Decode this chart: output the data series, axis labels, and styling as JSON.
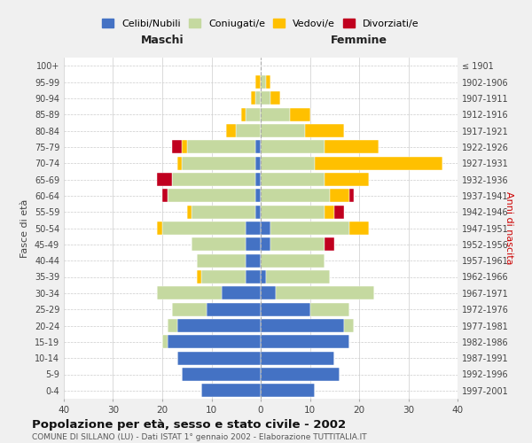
{
  "age_groups": [
    "0-4",
    "5-9",
    "10-14",
    "15-19",
    "20-24",
    "25-29",
    "30-34",
    "35-39",
    "40-44",
    "45-49",
    "50-54",
    "55-59",
    "60-64",
    "65-69",
    "70-74",
    "75-79",
    "80-84",
    "85-89",
    "90-94",
    "95-99",
    "100+"
  ],
  "birth_years": [
    "1997-2001",
    "1992-1996",
    "1987-1991",
    "1982-1986",
    "1977-1981",
    "1972-1976",
    "1967-1971",
    "1962-1966",
    "1957-1961",
    "1952-1956",
    "1947-1951",
    "1942-1946",
    "1937-1941",
    "1932-1936",
    "1927-1931",
    "1922-1926",
    "1917-1921",
    "1912-1916",
    "1907-1911",
    "1902-1906",
    "≤ 1901"
  ],
  "maschi": {
    "celibi": [
      12,
      16,
      17,
      19,
      17,
      11,
      8,
      3,
      3,
      3,
      3,
      1,
      1,
      1,
      1,
      1,
      0,
      0,
      0,
      0,
      0
    ],
    "coniugati": [
      0,
      0,
      0,
      1,
      2,
      7,
      13,
      9,
      10,
      11,
      17,
      13,
      18,
      17,
      15,
      14,
      5,
      3,
      1,
      0,
      0
    ],
    "vedovi": [
      0,
      0,
      0,
      0,
      0,
      0,
      0,
      1,
      0,
      0,
      1,
      1,
      0,
      0,
      1,
      1,
      2,
      1,
      1,
      1,
      0
    ],
    "divorziati": [
      0,
      0,
      0,
      0,
      0,
      0,
      0,
      0,
      0,
      0,
      0,
      0,
      1,
      3,
      0,
      2,
      0,
      0,
      0,
      0,
      0
    ]
  },
  "femmine": {
    "nubili": [
      11,
      16,
      15,
      18,
      17,
      10,
      3,
      1,
      0,
      2,
      2,
      0,
      0,
      0,
      0,
      0,
      0,
      0,
      0,
      0,
      0
    ],
    "coniugate": [
      0,
      0,
      0,
      0,
      2,
      8,
      20,
      13,
      13,
      11,
      16,
      13,
      14,
      13,
      11,
      13,
      9,
      6,
      2,
      1,
      0
    ],
    "vedove": [
      0,
      0,
      0,
      0,
      0,
      0,
      0,
      0,
      0,
      0,
      4,
      2,
      4,
      9,
      26,
      11,
      8,
      4,
      2,
      1,
      0
    ],
    "divorziate": [
      0,
      0,
      0,
      0,
      0,
      0,
      0,
      0,
      0,
      2,
      0,
      2,
      1,
      0,
      0,
      0,
      0,
      0,
      0,
      0,
      0
    ]
  },
  "colors": {
    "celibi": "#4472c4",
    "coniugati": "#c5d9a0",
    "vedovi": "#ffc000",
    "divorziati": "#c0001f"
  },
  "xlim": 40,
  "title": "Popolazione per età, sesso e stato civile - 2002",
  "subtitle": "COMUNE DI SILLANO (LU) - Dati ISTAT 1° gennaio 2002 - Elaborazione TUTTITALIA.IT",
  "ylabel_left": "Fasce di età",
  "ylabel_right": "Anni di nascita",
  "xlabel_left": "Maschi",
  "xlabel_right": "Femmine",
  "bg_color": "#f0f0f0",
  "plot_bg_color": "#ffffff"
}
